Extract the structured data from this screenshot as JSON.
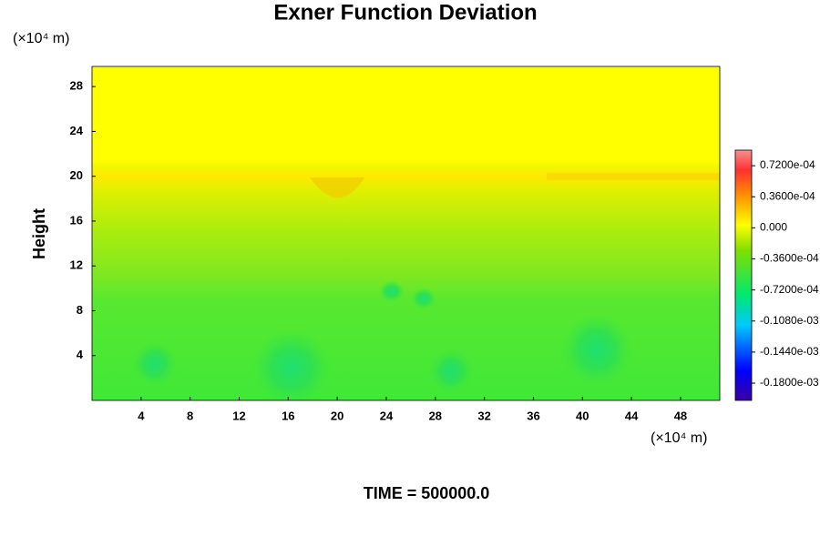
{
  "chart_data": {
    "type": "contour",
    "title": "Exner Function Deviation",
    "x_unit_label": "(×10⁴ m)",
    "y_unit_label": "(×10⁴ m)",
    "ylabel": "Height",
    "time_label": "TIME = 500000.0",
    "xlim": [
      0,
      51.2
    ],
    "xticks": [
      4,
      8,
      12,
      16,
      20,
      24,
      28,
      32,
      36,
      40,
      44,
      48
    ],
    "ylim": [
      0,
      29.8
    ],
    "yticks": [
      4,
      8,
      12,
      16,
      20,
      24,
      28
    ],
    "clim": [
      -0.0002,
      9e-05
    ],
    "cticks": [
      {
        "value": 7.2e-05,
        "label": "0.7200e-04"
      },
      {
        "value": 3.6e-05,
        "label": "0.3600e-04"
      },
      {
        "value": 0,
        "label": "0.000"
      },
      {
        "value": -3.6e-05,
        "label": "-0.3600e-04"
      },
      {
        "value": -7.2e-05,
        "label": "-0.7200e-04"
      },
      {
        "value": -0.000108,
        "label": "-0.1080e-03"
      },
      {
        "value": -0.000144,
        "label": "-0.1440e-03"
      },
      {
        "value": -0.00018,
        "label": "-0.1800e-03"
      }
    ]
  }
}
